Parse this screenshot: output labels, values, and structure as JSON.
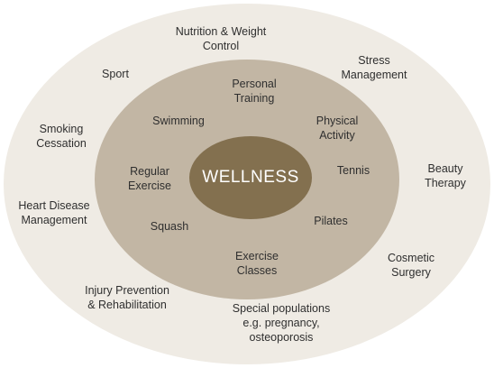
{
  "center": "WELLNESS",
  "middle_ring": [
    {
      "id": "personal-training",
      "lines": [
        "Personal",
        "Training"
      ]
    },
    {
      "id": "swimming",
      "lines": [
        "Swimming"
      ]
    },
    {
      "id": "physical-activity",
      "lines": [
        "Physical",
        "Activity"
      ]
    },
    {
      "id": "regular-exercise",
      "lines": [
        "Regular",
        "Exercise"
      ]
    },
    {
      "id": "tennis",
      "lines": [
        "Tennis"
      ]
    },
    {
      "id": "squash",
      "lines": [
        "Squash"
      ]
    },
    {
      "id": "pilates",
      "lines": [
        "Pilates"
      ]
    },
    {
      "id": "exercise-classes",
      "lines": [
        "Exercise",
        "Classes"
      ]
    }
  ],
  "outer_ring": [
    {
      "id": "nutrition-weight-control",
      "lines": [
        "Nutrition & Weight",
        "Control"
      ]
    },
    {
      "id": "sport",
      "lines": [
        "Sport"
      ]
    },
    {
      "id": "stress-management",
      "lines": [
        "Stress",
        "Management"
      ]
    },
    {
      "id": "smoking-cessation",
      "lines": [
        "Smoking",
        "Cessation"
      ]
    },
    {
      "id": "beauty-therapy",
      "lines": [
        "Beauty",
        "Therapy"
      ]
    },
    {
      "id": "heart-disease-management",
      "lines": [
        "Heart Disease",
        "Management"
      ]
    },
    {
      "id": "cosmetic-surgery",
      "lines": [
        "Cosmetic",
        "Surgery"
      ]
    },
    {
      "id": "injury-prevention-rehabilitation",
      "lines": [
        "Injury Prevention",
        "& Rehabilitation"
      ]
    },
    {
      "id": "special-populations",
      "lines": [
        "Special populations",
        "e.g. pregnancy,",
        "osteoporosis"
      ]
    }
  ]
}
